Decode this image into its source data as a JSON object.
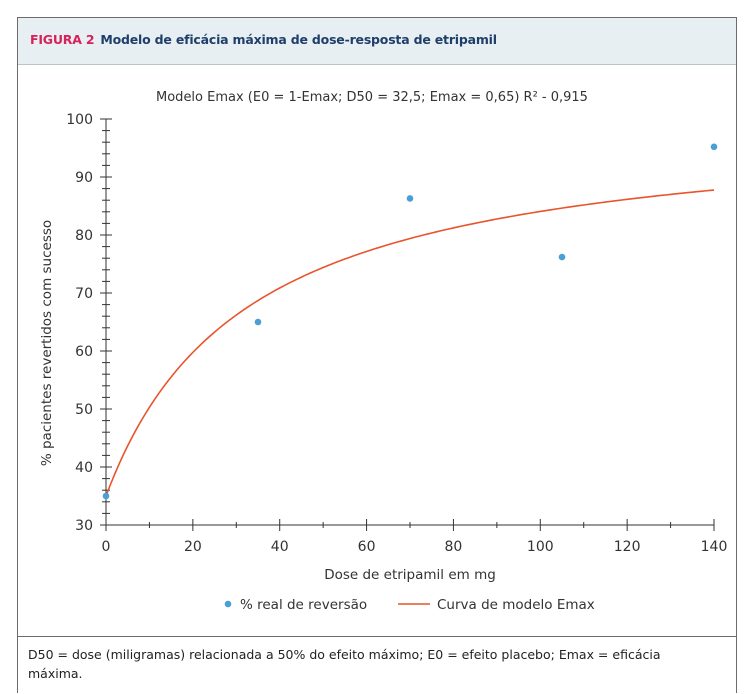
{
  "header": {
    "figure_label": "FIGURA 2",
    "title": "Modelo de eficácia máxima de dose-resposta de etripamil"
  },
  "chart_data": {
    "type": "scatter",
    "title": "Modelo Emax (E0 = 1-Emax; D50 = 32,5; Emax = 0,65) R² - 0,915",
    "xlabel": "Dose de etripamil em mg",
    "ylabel": "% pacientes revertidos com sucesso",
    "xlim": [
      0,
      140
    ],
    "ylim": [
      30,
      100
    ],
    "x_ticks": [
      "0",
      "20",
      "40",
      "60",
      "80",
      "100",
      "120",
      "140"
    ],
    "y_ticks": [
      "30",
      "40",
      "50",
      "60",
      "70",
      "80",
      "90",
      "100"
    ],
    "grid": false,
    "legend_position": "bottom",
    "colors": {
      "points": "#4a9fd4",
      "curve": "#e8542c",
      "axis": "#333333"
    },
    "series": [
      {
        "name": "% real de reversão",
        "kind": "scatter",
        "x": [
          0,
          35,
          70,
          105,
          140
        ],
        "y": [
          35,
          65,
          86.3,
          76.2,
          95.2
        ]
      },
      {
        "name": "Curva de modelo Emax",
        "kind": "line",
        "model": {
          "E0": 0.35,
          "Emax": 0.65,
          "D50": 32.5
        }
      }
    ]
  },
  "footnote": "D50 = dose (miligramas) relacionada a 50% do efeito máximo; E0 = efeito placebo; Emax = eficácia máxima."
}
